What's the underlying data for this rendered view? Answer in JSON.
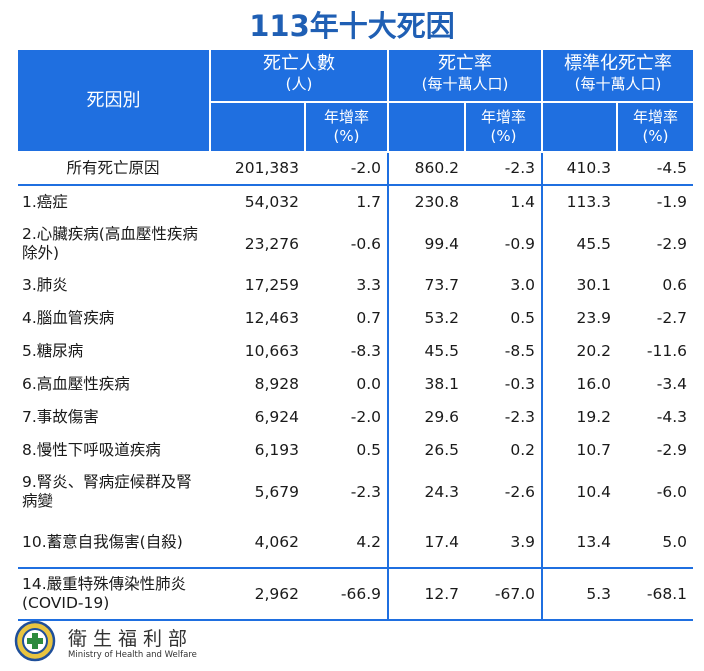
{
  "title": "113年十大死因",
  "chart_data": {
    "type": "table",
    "title": "113年十大死因",
    "headers": {
      "cause": "死因別",
      "deaths": "死亡人數",
      "deaths_unit": "(人)",
      "rate": "死亡率",
      "rate_unit": "(每十萬人口)",
      "std_rate": "標準化死亡率",
      "std_rate_unit": "(每十萬人口)",
      "growth": "年增率",
      "growth_unit": "(%)"
    },
    "rows": [
      {
        "cause": "所有死亡原因",
        "deaths": "201,383",
        "deaths_growth": "-2.0",
        "rate": "860.2",
        "rate_growth": "-2.3",
        "std_rate": "410.3",
        "std_rate_growth": "-4.5"
      },
      {
        "cause": "1.癌症",
        "deaths": "54,032",
        "deaths_growth": "1.7",
        "rate": "230.8",
        "rate_growth": "1.4",
        "std_rate": "113.3",
        "std_rate_growth": "-1.9"
      },
      {
        "cause": "2.心臟疾病(高血壓性疾病除外)",
        "deaths": "23,276",
        "deaths_growth": "-0.6",
        "rate": "99.4",
        "rate_growth": "-0.9",
        "std_rate": "45.5",
        "std_rate_growth": "-2.9"
      },
      {
        "cause": "3.肺炎",
        "deaths": "17,259",
        "deaths_growth": "3.3",
        "rate": "73.7",
        "rate_growth": "3.0",
        "std_rate": "30.1",
        "std_rate_growth": "0.6"
      },
      {
        "cause": "4.腦血管疾病",
        "deaths": "12,463",
        "deaths_growth": "0.7",
        "rate": "53.2",
        "rate_growth": "0.5",
        "std_rate": "23.9",
        "std_rate_growth": "-2.7"
      },
      {
        "cause": "5.糖尿病",
        "deaths": "10,663",
        "deaths_growth": "-8.3",
        "rate": "45.5",
        "rate_growth": "-8.5",
        "std_rate": "20.2",
        "std_rate_growth": "-11.6"
      },
      {
        "cause": "6.高血壓性疾病",
        "deaths": "8,928",
        "deaths_growth": "0.0",
        "rate": "38.1",
        "rate_growth": "-0.3",
        "std_rate": "16.0",
        "std_rate_growth": "-3.4"
      },
      {
        "cause": "7.事故傷害",
        "deaths": "6,924",
        "deaths_growth": "-2.0",
        "rate": "29.6",
        "rate_growth": "-2.3",
        "std_rate": "19.2",
        "std_rate_growth": "-4.3"
      },
      {
        "cause": "8.慢性下呼吸道疾病",
        "deaths": "6,193",
        "deaths_growth": "0.5",
        "rate": "26.5",
        "rate_growth": "0.2",
        "std_rate": "10.7",
        "std_rate_growth": "-2.9"
      },
      {
        "cause": "9.腎炎、腎病症候群及腎病變",
        "deaths": "5,679",
        "deaths_growth": "-2.3",
        "rate": "24.3",
        "rate_growth": "-2.6",
        "std_rate": "10.4",
        "std_rate_growth": "-6.0"
      },
      {
        "cause": "10.蓄意自我傷害(自殺)",
        "deaths": "4,062",
        "deaths_growth": "4.2",
        "rate": "17.4",
        "rate_growth": "3.9",
        "std_rate": "13.4",
        "std_rate_growth": "5.0"
      },
      {
        "cause": "14.嚴重特殊傳染性肺炎(COVID-19)",
        "deaths": "2,962",
        "deaths_growth": "-66.9",
        "rate": "12.7",
        "rate_growth": "-67.0",
        "std_rate": "5.3",
        "std_rate_growth": "-68.1"
      }
    ]
  },
  "footer": {
    "ministry_zh": "衛生福利部",
    "ministry_en": "Ministry of Health and Welfare"
  },
  "colors": {
    "accent": "#1f6fe0",
    "title": "#1f5fb4"
  }
}
